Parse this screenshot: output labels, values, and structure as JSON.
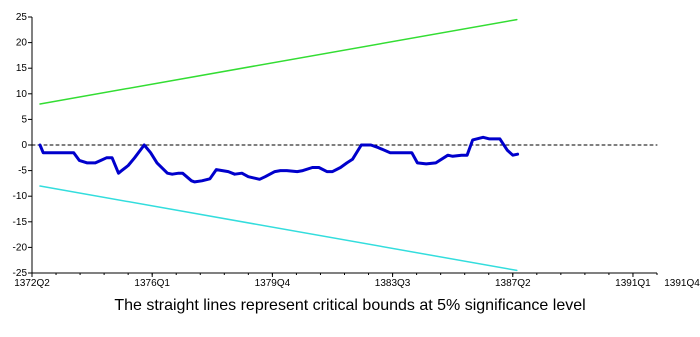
{
  "chart_data": {
    "type": "line",
    "title": "",
    "xlabel": "",
    "ylabel": "",
    "caption": "The straight lines represent critical bounds at 5% significance level",
    "x_ticks": [
      "1372Q2",
      "1376Q1",
      "1379Q4",
      "1383Q3",
      "1387Q2",
      "1391Q1",
      "1391Q4"
    ],
    "y_ticks": [
      "25",
      "20",
      "15",
      "10",
      "5",
      "0",
      "-5",
      "-10",
      "-15",
      "-20",
      "-25"
    ],
    "ylim": [
      -25,
      25
    ],
    "x_range_quarters": [
      0,
      78
    ],
    "grid": false,
    "series": [
      {
        "role": "upper-bound",
        "color": "#33dd33",
        "x": [
          1.0,
          60.5
        ],
        "y": [
          8.0,
          24.5
        ]
      },
      {
        "role": "lower-bound",
        "color": "#33dddd",
        "x": [
          1.0,
          60.5
        ],
        "y": [
          -8.0,
          -24.5
        ]
      },
      {
        "role": "zero-line",
        "color": "#000000",
        "dashed": true,
        "x": [
          0,
          78
        ],
        "y": [
          0,
          0
        ]
      },
      {
        "role": "cusum",
        "color": "#0000cc",
        "x": [
          1.0,
          1.4,
          2.8,
          5.2,
          5.9,
          6.9,
          7.9,
          8.6,
          9.3,
          10.0,
          10.8,
          11.2,
          12.0,
          12.8,
          14.0,
          14.8,
          15.6,
          16.9,
          17.5,
          18.3,
          18.8,
          19.9,
          20.3,
          21.2,
          22.2,
          23.0,
          24.5,
          25.3,
          26.2,
          27.0,
          28.4,
          29.1,
          30.3,
          31.0,
          31.8,
          33.1,
          33.8,
          35.0,
          35.8,
          36.8,
          37.5,
          38.5,
          39.3,
          40.0,
          41.1,
          42.3,
          43.2,
          44.7,
          45.4,
          46.6,
          47.4,
          48.1,
          49.2,
          50.4,
          51.9,
          52.5,
          53.6,
          54.3,
          55.0,
          56.3,
          57.1,
          58.4,
          59.3,
          60.0,
          60.6
        ],
        "y": [
          0.0,
          -1.5,
          -1.5,
          -1.5,
          -3.0,
          -3.5,
          -3.5,
          -3.0,
          -2.5,
          -2.5,
          -5.5,
          -5.0,
          -4.0,
          -2.5,
          0.0,
          -1.5,
          -3.5,
          -5.5,
          -5.7,
          -5.5,
          -5.5,
          -7.0,
          -7.2,
          -7.0,
          -6.6,
          -4.8,
          -5.2,
          -5.7,
          -5.5,
          -6.2,
          -6.7,
          -6.2,
          -5.2,
          -5.0,
          -5.0,
          -5.2,
          -5.0,
          -4.4,
          -4.4,
          -5.2,
          -5.2,
          -4.4,
          -3.5,
          -2.8,
          0.0,
          0.0,
          -0.5,
          -1.5,
          -1.5,
          -1.5,
          -1.5,
          -3.5,
          -3.7,
          -3.5,
          -2.0,
          -2.2,
          -2.0,
          -2.0,
          1.0,
          1.5,
          1.2,
          1.2,
          -1.0,
          -2.0,
          -1.8
        ]
      }
    ]
  }
}
